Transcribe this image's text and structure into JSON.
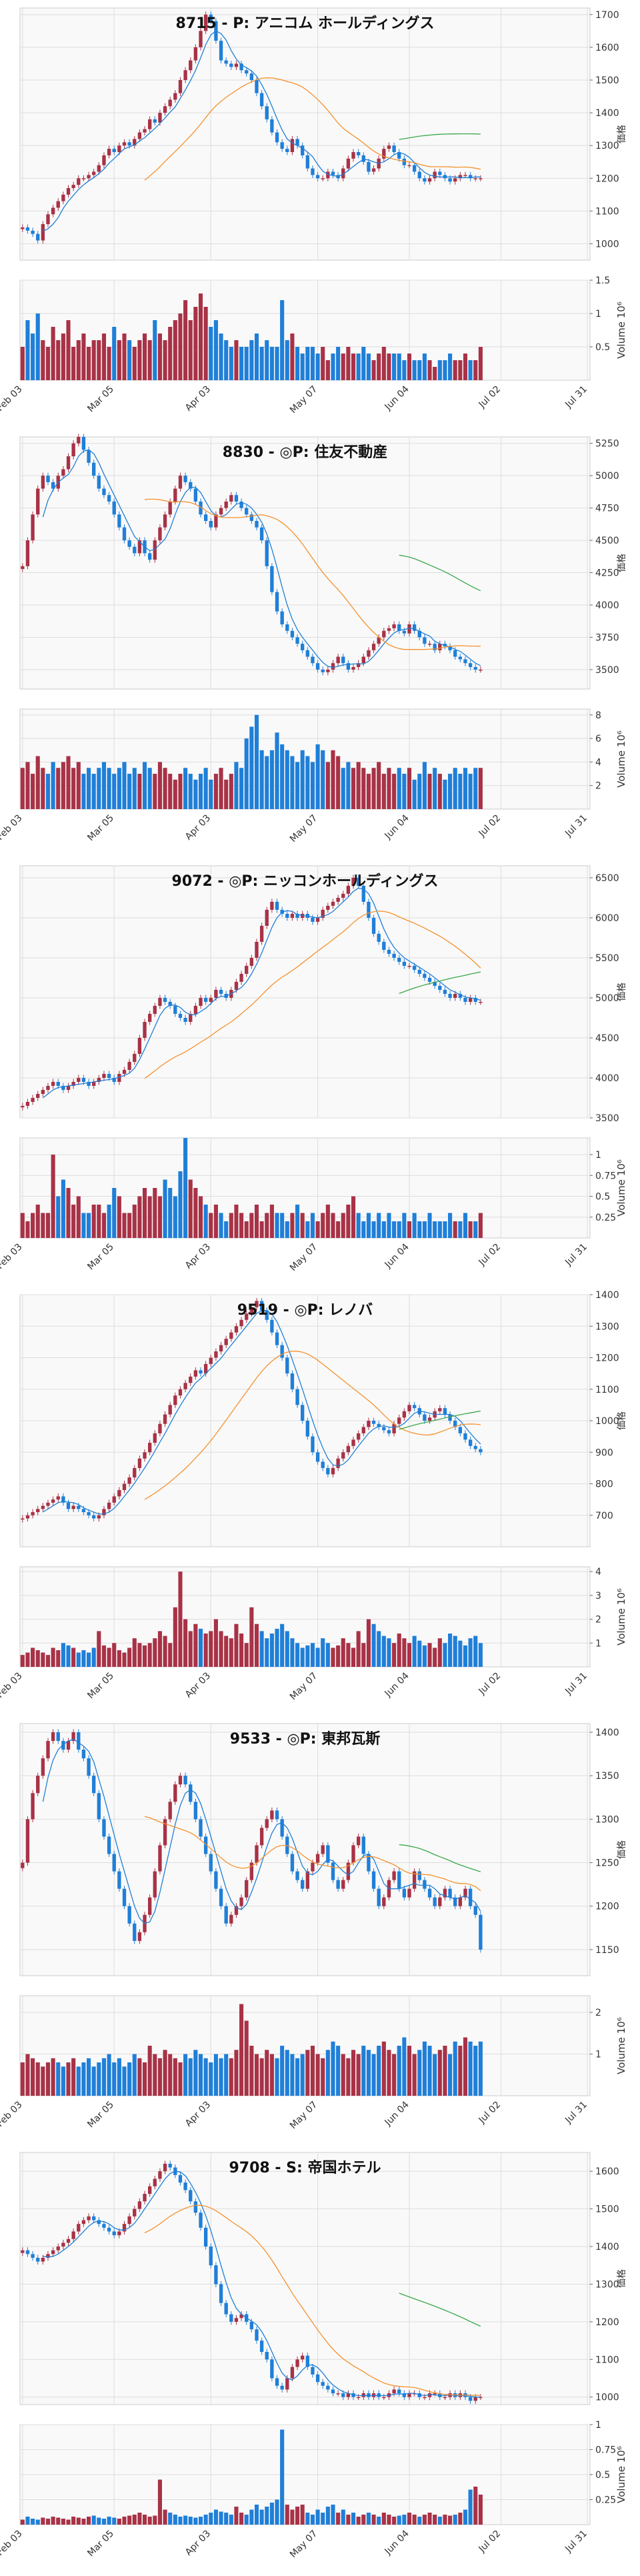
{
  "x_ticks": [
    "Feb 03",
    "Mar 05",
    "Apr 03",
    "May 07",
    "Jun 04",
    "Jul 02",
    "Jul 31"
  ],
  "price_axis_label": "価格",
  "volume_axis_label": "Volume",
  "volume_axis_exp": "10⁶",
  "colors": {
    "up": "#a83246",
    "down": "#1f7fd8",
    "ma_short": "#1f7fd8",
    "ma_mid": "#f5912c",
    "ma_long": "#3aa84a",
    "grid": "#dddddd",
    "bg": "#f9f9f9"
  },
  "chart_data": [
    {
      "type": "candlestick",
      "title": "8715 - P: アニコム ホールディングス",
      "ylim": [
        950,
        1720
      ],
      "yticks": [
        1000,
        1100,
        1200,
        1300,
        1400,
        1500,
        1600,
        1700
      ],
      "vol_ylim": [
        0,
        1.5
      ],
      "vol_ticks": [
        0.5,
        1.0,
        1.5
      ],
      "close": [
        1050,
        1040,
        1030,
        1010,
        1060,
        1090,
        1110,
        1130,
        1150,
        1170,
        1180,
        1200,
        1200,
        1210,
        1220,
        1240,
        1270,
        1290,
        1280,
        1300,
        1310,
        1300,
        1320,
        1340,
        1350,
        1380,
        1370,
        1400,
        1420,
        1440,
        1460,
        1500,
        1530,
        1560,
        1600,
        1650,
        1700,
        1680,
        1620,
        1560,
        1550,
        1540,
        1550,
        1530,
        1520,
        1500,
        1460,
        1420,
        1380,
        1340,
        1310,
        1290,
        1280,
        1320,
        1300,
        1270,
        1230,
        1210,
        1200,
        1200,
        1220,
        1210,
        1200,
        1230,
        1260,
        1280,
        1270,
        1250,
        1220,
        1230,
        1260,
        1290,
        1300,
        1280,
        1260,
        1240,
        1240,
        1220,
        1200,
        1190,
        1200,
        1220,
        1210,
        1200,
        1190,
        1200,
        1210,
        1210,
        1200,
        1200,
        1200
      ],
      "volume": [
        0.5,
        0.9,
        0.7,
        1.0,
        0.6,
        0.5,
        0.8,
        0.6,
        0.7,
        0.9,
        0.5,
        0.6,
        0.7,
        0.5,
        0.6,
        0.6,
        0.7,
        0.5,
        0.8,
        0.6,
        0.7,
        0.6,
        0.5,
        0.6,
        0.7,
        0.6,
        0.9,
        0.7,
        0.6,
        0.8,
        0.9,
        1.0,
        1.2,
        0.9,
        1.1,
        1.3,
        1.1,
        0.8,
        0.9,
        0.7,
        0.6,
        0.5,
        0.6,
        0.5,
        0.5,
        0.6,
        0.7,
        0.5,
        0.6,
        0.5,
        0.5,
        1.2,
        0.6,
        0.7,
        0.5,
        0.4,
        0.5,
        0.5,
        0.4,
        0.5,
        0.3,
        0.4,
        0.5,
        0.4,
        0.5,
        0.4,
        0.4,
        0.5,
        0.4,
        0.3,
        0.4,
        0.5,
        0.4,
        0.4,
        0.4,
        0.3,
        0.4,
        0.3,
        0.3,
        0.4,
        0.3,
        0.2,
        0.3,
        0.3,
        0.4,
        0.3,
        0.3,
        0.4,
        0.3,
        0.3,
        0.5
      ]
    },
    {
      "type": "candlestick",
      "title": "8830 - ◎P: 住友不動産",
      "ylim": [
        3350,
        5300
      ],
      "yticks": [
        3500,
        3750,
        4000,
        4250,
        4500,
        4750,
        5000,
        5250
      ],
      "vol_ylim": [
        0,
        8.5
      ],
      "vol_ticks": [
        2,
        4,
        6,
        8
      ],
      "close": [
        4300,
        4500,
        4700,
        4900,
        5000,
        4950,
        4900,
        5000,
        5050,
        5150,
        5250,
        5300,
        5200,
        5100,
        5000,
        4900,
        4850,
        4800,
        4700,
        4600,
        4500,
        4450,
        4400,
        4500,
        4400,
        4350,
        4500,
        4600,
        4700,
        4800,
        4900,
        5000,
        4950,
        4900,
        4800,
        4700,
        4650,
        4600,
        4700,
        4750,
        4800,
        4850,
        4800,
        4750,
        4700,
        4650,
        4600,
        4500,
        4300,
        4100,
        3950,
        3850,
        3800,
        3750,
        3700,
        3650,
        3600,
        3550,
        3500,
        3480,
        3500,
        3550,
        3600,
        3550,
        3500,
        3520,
        3550,
        3600,
        3650,
        3700,
        3750,
        3800,
        3820,
        3850,
        3800,
        3780,
        3850,
        3800,
        3750,
        3700,
        3700,
        3650,
        3700,
        3680,
        3650,
        3600,
        3580,
        3550,
        3520,
        3500,
        3500
      ],
      "volume": [
        3.5,
        4.0,
        3.0,
        4.5,
        3.5,
        3.0,
        4.0,
        3.5,
        4.0,
        4.5,
        3.5,
        4.0,
        3.0,
        3.5,
        3.0,
        3.5,
        4.0,
        3.5,
        3.0,
        3.5,
        4.0,
        3.0,
        3.5,
        3.0,
        4.0,
        3.5,
        3.0,
        4.0,
        3.5,
        3.0,
        2.5,
        3.0,
        3.5,
        3.0,
        2.5,
        3.0,
        3.5,
        2.5,
        3.0,
        3.5,
        2.5,
        3.0,
        4.0,
        3.5,
        6.0,
        7.0,
        8.0,
        5.0,
        4.5,
        5.0,
        6.5,
        5.5,
        5.0,
        4.5,
        4.0,
        5.0,
        4.5,
        4.0,
        5.5,
        5.0,
        4.0,
        5.0,
        4.5,
        3.5,
        4.0,
        3.5,
        4.0,
        3.5,
        3.0,
        3.5,
        4.0,
        3.0,
        3.5,
        3.0,
        3.5,
        3.0,
        3.5,
        2.5,
        3.0,
        4.0,
        3.0,
        3.5,
        3.0,
        2.5,
        3.0,
        3.5,
        3.0,
        3.5,
        3.0,
        3.5,
        3.5
      ]
    },
    {
      "type": "candlestick",
      "title": "9072 - ◎P: ニッコンホールディングス",
      "ylim": [
        3500,
        6650
      ],
      "yticks": [
        3500,
        4000,
        4500,
        5000,
        5500,
        6000,
        6500
      ],
      "vol_ylim": [
        0,
        1.2
      ],
      "vol_ticks": [
        0.25,
        0.5,
        0.75,
        1.0
      ],
      "close": [
        3650,
        3700,
        3750,
        3800,
        3850,
        3900,
        3950,
        3900,
        3850,
        3900,
        3950,
        4000,
        3950,
        3900,
        3950,
        4000,
        4050,
        4000,
        3950,
        4050,
        4100,
        4200,
        4300,
        4500,
        4700,
        4800,
        4900,
        5000,
        4950,
        4900,
        4800,
        4750,
        4700,
        4800,
        4900,
        5000,
        4950,
        5000,
        5100,
        5050,
        5000,
        5100,
        5200,
        5300,
        5400,
        5500,
        5700,
        5900,
        6100,
        6200,
        6100,
        6050,
        6000,
        6050,
        6000,
        6050,
        6000,
        5950,
        6000,
        6100,
        6150,
        6200,
        6250,
        6300,
        6400,
        6500,
        6400,
        6200,
        6000,
        5800,
        5700,
        5600,
        5550,
        5500,
        5450,
        5400,
        5400,
        5350,
        5300,
        5250,
        5200,
        5150,
        5100,
        5050,
        5000,
        5050,
        5000,
        4950,
        5000,
        4950,
        4950
      ],
      "volume": [
        0.3,
        0.2,
        0.3,
        0.4,
        0.3,
        0.3,
        1.0,
        0.5,
        0.7,
        0.6,
        0.4,
        0.5,
        0.3,
        0.3,
        0.4,
        0.4,
        0.3,
        0.4,
        0.6,
        0.5,
        0.3,
        0.3,
        0.4,
        0.5,
        0.6,
        0.5,
        0.6,
        0.5,
        0.7,
        0.6,
        0.5,
        0.8,
        1.2,
        0.7,
        0.6,
        0.5,
        0.4,
        0.3,
        0.4,
        0.3,
        0.2,
        0.3,
        0.4,
        0.3,
        0.2,
        0.3,
        0.4,
        0.2,
        0.3,
        0.4,
        0.3,
        0.3,
        0.2,
        0.3,
        0.4,
        0.3,
        0.2,
        0.3,
        0.2,
        0.3,
        0.4,
        0.3,
        0.2,
        0.3,
        0.4,
        0.5,
        0.3,
        0.2,
        0.3,
        0.2,
        0.3,
        0.2,
        0.3,
        0.2,
        0.2,
        0.3,
        0.2,
        0.3,
        0.2,
        0.2,
        0.3,
        0.2,
        0.2,
        0.2,
        0.3,
        0.2,
        0.2,
        0.3,
        0.2,
        0.2,
        0.3
      ]
    },
    {
      "type": "candlestick",
      "title": "9519 - ◎P: レノバ",
      "ylim": [
        600,
        1400
      ],
      "yticks": [
        700,
        800,
        900,
        1000,
        1100,
        1200,
        1300,
        1400
      ],
      "vol_ylim": [
        0,
        4.2
      ],
      "vol_ticks": [
        1,
        2,
        3,
        4
      ],
      "close": [
        690,
        700,
        710,
        720,
        730,
        740,
        750,
        760,
        740,
        720,
        730,
        720,
        710,
        700,
        690,
        700,
        720,
        740,
        760,
        780,
        800,
        820,
        850,
        880,
        900,
        930,
        960,
        990,
        1020,
        1050,
        1080,
        1100,
        1120,
        1140,
        1160,
        1150,
        1180,
        1200,
        1220,
        1240,
        1260,
        1280,
        1300,
        1320,
        1340,
        1360,
        1380,
        1350,
        1320,
        1280,
        1240,
        1200,
        1150,
        1100,
        1050,
        1000,
        950,
        900,
        870,
        850,
        830,
        850,
        880,
        900,
        920,
        940,
        960,
        980,
        1000,
        990,
        980,
        970,
        960,
        990,
        1010,
        1030,
        1050,
        1040,
        1020,
        1000,
        1010,
        1030,
        1040,
        1020,
        1000,
        980,
        960,
        940,
        920,
        910,
        900
      ],
      "volume": [
        0.5,
        0.6,
        0.8,
        0.7,
        0.6,
        0.5,
        0.8,
        0.7,
        1.0,
        0.9,
        0.8,
        0.6,
        0.7,
        0.6,
        0.8,
        1.5,
        0.9,
        0.8,
        1.0,
        0.7,
        0.6,
        0.8,
        1.2,
        1.0,
        0.9,
        1.0,
        1.2,
        1.5,
        1.3,
        1.0,
        2.5,
        4.0,
        2.0,
        1.5,
        1.8,
        1.6,
        1.4,
        1.5,
        2.0,
        1.5,
        1.3,
        1.2,
        1.8,
        1.4,
        1.0,
        2.5,
        1.8,
        1.5,
        1.2,
        1.4,
        1.6,
        1.8,
        1.5,
        1.2,
        1.0,
        0.8,
        0.9,
        1.0,
        0.8,
        1.2,
        1.0,
        0.8,
        0.9,
        1.2,
        1.0,
        0.8,
        1.5,
        1.0,
        2.0,
        1.8,
        1.5,
        1.3,
        1.2,
        1.0,
        1.4,
        1.2,
        1.0,
        1.3,
        1.1,
        0.9,
        1.0,
        0.8,
        1.2,
        1.0,
        1.4,
        1.3,
        1.1,
        0.9,
        1.2,
        1.3,
        1.0
      ]
    },
    {
      "type": "candlestick",
      "title": "9533 - ◎P: 東邦瓦斯",
      "ylim": [
        1120,
        1410
      ],
      "yticks": [
        1150,
        1200,
        1250,
        1300,
        1350,
        1400
      ],
      "vol_ylim": [
        0,
        2.4
      ],
      "vol_ticks": [
        1,
        2
      ],
      "close": [
        1250,
        1300,
        1330,
        1350,
        1370,
        1390,
        1400,
        1390,
        1380,
        1390,
        1400,
        1380,
        1370,
        1350,
        1330,
        1300,
        1280,
        1260,
        1240,
        1220,
        1200,
        1180,
        1160,
        1170,
        1190,
        1210,
        1240,
        1270,
        1300,
        1320,
        1340,
        1350,
        1340,
        1320,
        1300,
        1280,
        1260,
        1240,
        1220,
        1200,
        1180,
        1190,
        1200,
        1210,
        1230,
        1250,
        1270,
        1290,
        1300,
        1310,
        1300,
        1280,
        1260,
        1240,
        1230,
        1220,
        1240,
        1250,
        1260,
        1270,
        1250,
        1230,
        1220,
        1230,
        1250,
        1270,
        1280,
        1260,
        1240,
        1220,
        1200,
        1210,
        1230,
        1240,
        1220,
        1210,
        1220,
        1240,
        1230,
        1220,
        1210,
        1200,
        1210,
        1220,
        1210,
        1200,
        1210,
        1220,
        1200,
        1190,
        1150
      ],
      "volume": [
        0.8,
        1.0,
        0.9,
        0.8,
        0.7,
        0.8,
        0.9,
        0.8,
        0.7,
        0.8,
        0.9,
        0.7,
        0.8,
        0.9,
        0.7,
        0.8,
        0.9,
        1.0,
        0.8,
        0.9,
        0.7,
        0.8,
        1.0,
        0.9,
        0.8,
        1.2,
        1.0,
        0.9,
        1.1,
        1.0,
        0.9,
        0.8,
        1.0,
        0.9,
        1.1,
        1.0,
        0.9,
        0.8,
        1.0,
        0.9,
        1.0,
        0.9,
        1.1,
        2.2,
        1.8,
        1.2,
        1.0,
        0.9,
        1.1,
        1.0,
        0.9,
        1.2,
        1.1,
        1.0,
        0.9,
        1.0,
        1.1,
        1.2,
        1.0,
        0.9,
        1.1,
        1.3,
        1.2,
        1.0,
        0.9,
        1.1,
        1.0,
        1.2,
        1.1,
        1.0,
        1.2,
        1.3,
        1.1,
        1.0,
        1.2,
        1.4,
        1.2,
        1.0,
        1.1,
        1.3,
        1.2,
        1.0,
        1.1,
        1.2,
        1.0,
        1.3,
        1.2,
        1.4,
        1.3,
        1.2,
        1.3
      ]
    },
    {
      "type": "candlestick",
      "title": "9708 - S: 帝国ホテル",
      "ylim": [
        980,
        1650
      ],
      "yticks": [
        1000,
        1100,
        1200,
        1300,
        1400,
        1500,
        1600
      ],
      "vol_ylim": [
        0,
        1.0
      ],
      "vol_ticks": [
        0.25,
        0.5,
        0.75,
        1.0
      ],
      "close": [
        1390,
        1380,
        1370,
        1360,
        1370,
        1380,
        1390,
        1400,
        1410,
        1420,
        1440,
        1460,
        1470,
        1480,
        1470,
        1460,
        1450,
        1440,
        1430,
        1440,
        1460,
        1480,
        1500,
        1520,
        1540,
        1560,
        1580,
        1600,
        1620,
        1610,
        1590,
        1570,
        1550,
        1520,
        1490,
        1450,
        1400,
        1350,
        1300,
        1250,
        1220,
        1200,
        1210,
        1220,
        1200,
        1180,
        1150,
        1120,
        1100,
        1050,
        1030,
        1020,
        1050,
        1080,
        1100,
        1110,
        1080,
        1060,
        1040,
        1030,
        1020,
        1010,
        1010,
        1000,
        1010,
        1000,
        1000,
        1010,
        1000,
        1010,
        1000,
        1000,
        1010,
        1020,
        1010,
        1000,
        1010,
        1010,
        1000,
        1000,
        1010,
        1010,
        1000,
        1000,
        1010,
        1000,
        1010,
        1000,
        990,
        1000,
        1000
      ],
      "volume": [
        0.05,
        0.08,
        0.06,
        0.05,
        0.07,
        0.06,
        0.08,
        0.07,
        0.06,
        0.05,
        0.08,
        0.07,
        0.06,
        0.08,
        0.09,
        0.07,
        0.06,
        0.08,
        0.07,
        0.06,
        0.08,
        0.09,
        0.1,
        0.12,
        0.1,
        0.08,
        0.09,
        0.45,
        0.15,
        0.12,
        0.1,
        0.08,
        0.09,
        0.08,
        0.07,
        0.08,
        0.1,
        0.12,
        0.15,
        0.13,
        0.12,
        0.1,
        0.18,
        0.12,
        0.1,
        0.15,
        0.2,
        0.15,
        0.18,
        0.22,
        0.25,
        0.95,
        0.2,
        0.15,
        0.18,
        0.2,
        0.12,
        0.1,
        0.15,
        0.12,
        0.18,
        0.2,
        0.12,
        0.15,
        0.1,
        0.12,
        0.08,
        0.1,
        0.12,
        0.1,
        0.08,
        0.12,
        0.1,
        0.08,
        0.09,
        0.1,
        0.12,
        0.1,
        0.08,
        0.1,
        0.12,
        0.1,
        0.08,
        0.1,
        0.09,
        0.1,
        0.12,
        0.15,
        0.35,
        0.38,
        0.3
      ]
    }
  ]
}
